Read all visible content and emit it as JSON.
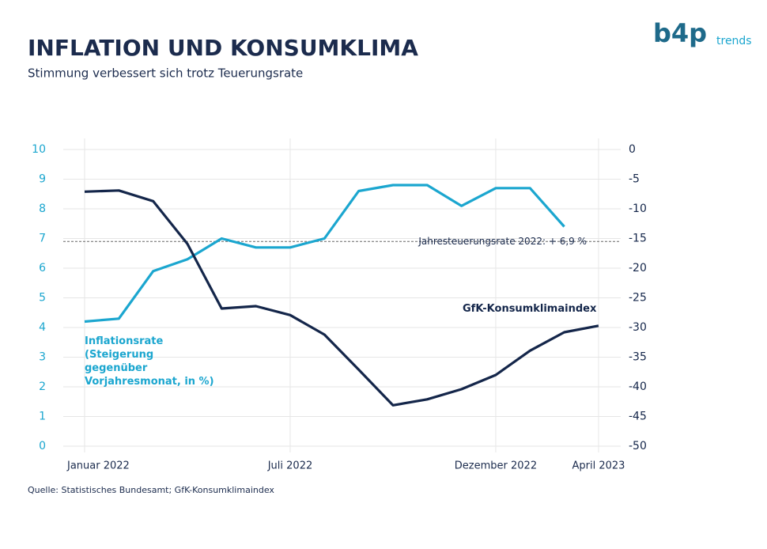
{
  "chart_data": {
    "type": "line",
    "title": "INFLATION UND KONSUMKLIMA",
    "subtitle": "Stimmung verbessert sich trotz Teuerungsrate",
    "logo": "b4p",
    "logo_sub": "trends",
    "source": "Quelle: Statistisches Bundesamt; GfK-Konsumklimaindex",
    "categories": [
      "Januar 2022",
      null,
      null,
      null,
      null,
      null,
      "Juli 2022",
      null,
      null,
      null,
      null,
      null,
      "Dezember 2022",
      null,
      null,
      "April 2023"
    ],
    "series": [
      {
        "name": "Inflationsrate (Steigerung gegenüber Vorjahresmonat, in %)",
        "color": "#1ba6cf",
        "values": [
          4.2,
          4.3,
          5.9,
          6.3,
          7.0,
          6.7,
          6.7,
          7.0,
          8.6,
          8.8,
          8.8,
          8.1,
          8.7,
          8.7,
          7.4,
          null
        ]
      },
      {
        "name": "GfK-Konsumklimaindex",
        "color": "#14264a",
        "axis": "y2",
        "values": [
          -7.1,
          -6.9,
          -8.7,
          -15.9,
          -26.8,
          -26.4,
          -27.9,
          -31.2,
          -37.1,
          -43.1,
          -42.1,
          -40.4,
          -38.0,
          -33.9,
          -30.8,
          -29.7
        ]
      }
    ],
    "ylim": [
      0,
      10
    ],
    "yticks": [
      0,
      1,
      2,
      3,
      4,
      5,
      6,
      7,
      8,
      9,
      10
    ],
    "y2lim": [
      -50,
      0
    ],
    "y2ticks": [
      -50,
      -45,
      -40,
      -35,
      -30,
      -25,
      -20,
      -15,
      -10,
      -5,
      0
    ],
    "grid": true,
    "reference_line": {
      "value": 6.9,
      "label": "Jahresteuerungsrate 2022: + 6,9 %"
    }
  }
}
